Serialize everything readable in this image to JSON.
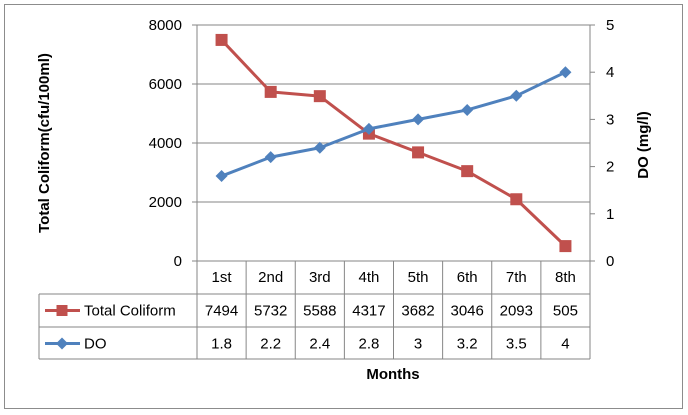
{
  "chart_data": {
    "type": "line",
    "categories": [
      "1st",
      "2nd",
      "3rd",
      "4th",
      "5th",
      "6th",
      "7th",
      "8th"
    ],
    "series": [
      {
        "name": "Total Coliform",
        "axis": "left",
        "marker": "square",
        "color": "#c0504d",
        "values": [
          7494,
          5732,
          5588,
          4317,
          3682,
          3046,
          2093,
          505
        ]
      },
      {
        "name": "DO",
        "axis": "right",
        "marker": "diamond",
        "color": "#4f81bd",
        "values": [
          1.8,
          2.2,
          2.4,
          2.8,
          3,
          3.2,
          3.5,
          4
        ]
      }
    ],
    "y_left": {
      "label": "Total Coliform(cfu/100ml)",
      "ticks": [
        "0",
        "2000",
        "4000",
        "6000",
        "8000"
      ],
      "range": [
        0,
        8000
      ]
    },
    "y_right": {
      "label": "DO (mg/l)",
      "ticks": [
        "0",
        "1",
        "2",
        "3",
        "4",
        "5"
      ],
      "range": [
        0,
        5
      ]
    },
    "xlabel": "Months",
    "grid": true,
    "legend": "data table below plot"
  }
}
